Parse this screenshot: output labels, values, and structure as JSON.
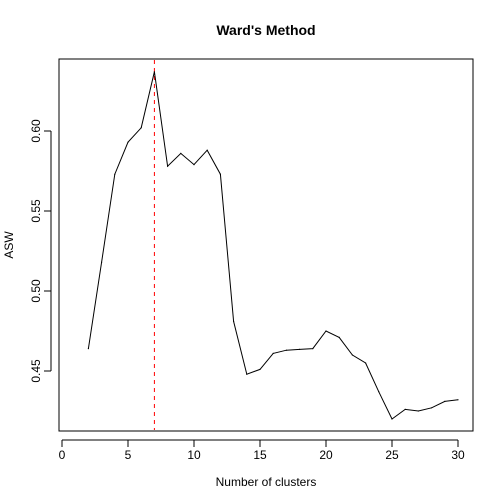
{
  "chart_data": {
    "type": "line",
    "title": "Ward's Method",
    "xlabel": "Number of clusters",
    "ylabel": "ASW",
    "xlim": [
      0,
      30
    ],
    "ylim": [
      0.4125,
      0.645
    ],
    "xticks": [
      0,
      5,
      10,
      15,
      20,
      25,
      30
    ],
    "xtick_labels": [
      "0",
      "5",
      "10",
      "15",
      "20",
      "25",
      "30"
    ],
    "yticks": [
      0.45,
      0.5,
      0.55,
      0.6
    ],
    "ytick_labels": [
      "0.45",
      "0.50",
      "0.55",
      "0.60"
    ],
    "grid": false,
    "series": [
      {
        "color": "#000000",
        "x": [
          2,
          3,
          4,
          5,
          6,
          7,
          8,
          9,
          10,
          11,
          12,
          13,
          14,
          15,
          16,
          17,
          18,
          19,
          20,
          21,
          22,
          23,
          24,
          25,
          26,
          27,
          28,
          29,
          30
        ],
        "y": [
          0.464,
          0.518,
          0.573,
          0.593,
          0.602,
          0.637,
          0.578,
          0.586,
          0.579,
          0.588,
          0.573,
          0.481,
          0.448,
          0.451,
          0.461,
          0.463,
          0.4635,
          0.464,
          0.475,
          0.471,
          0.46,
          0.455,
          0.437,
          0.42,
          0.426,
          0.425,
          0.427,
          0.431,
          0.432
        ]
      }
    ],
    "annotations": [
      {
        "type": "vline",
        "x": 7,
        "color": "#ff0000",
        "style": "dashed"
      }
    ]
  }
}
